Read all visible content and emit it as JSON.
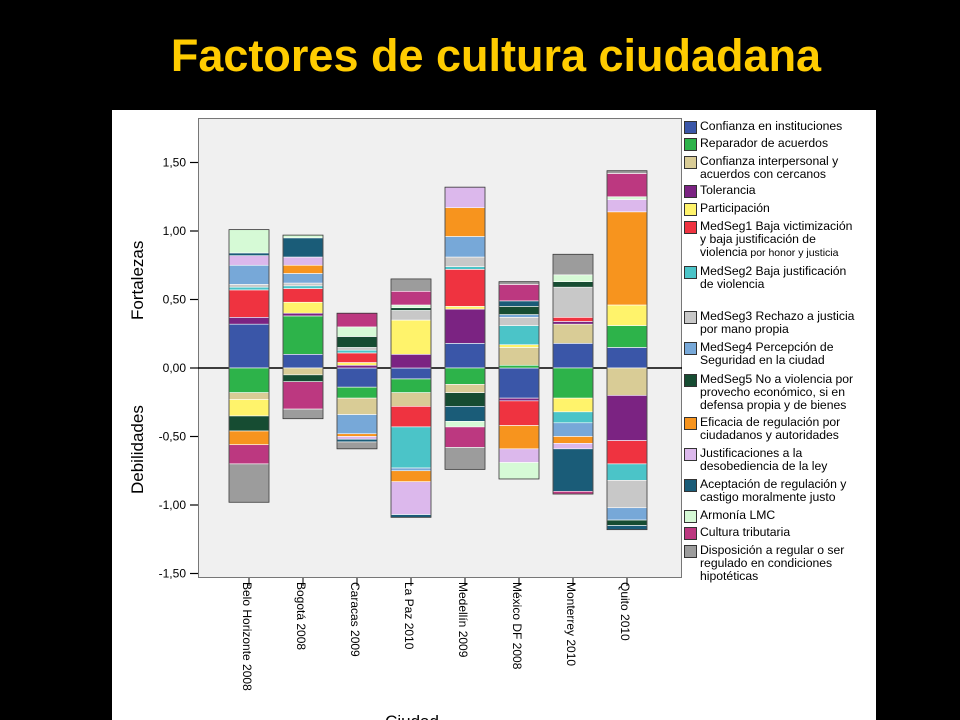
{
  "slide": {
    "title": "Factores de cultura ciudadana"
  },
  "colors": {
    "background": "#000000",
    "title": "#ffcc00",
    "panel": "#ffffff",
    "plot_bg": "#f0f0f0"
  },
  "chart_data": {
    "type": "bar",
    "stacked": true,
    "diverging": true,
    "ylabel_positive": "Fortalezas",
    "ylabel_negative": "Debilidades",
    "ylim": [
      -1.5,
      1.8
    ],
    "yticks": [
      1.5,
      1.0,
      0.5,
      0.0,
      -0.5,
      -1.0,
      -1.5
    ],
    "ytick_labels": [
      "1,50",
      "1,00",
      "0,50",
      "0,00",
      "-0,50",
      "-1,00",
      "-1,50"
    ],
    "x_title_partial": "Ciudad",
    "legend_position": "right",
    "categories": [
      "Belo Horizonte 2008",
      "Bogotá 2008",
      "Caracas 2009",
      "La Paz 2010",
      "Medellín 2009",
      "México DF 2008",
      "Monterrey 2010",
      "Quito 2010"
    ],
    "series": [
      {
        "name": "Confianza en instituciones",
        "color": "#3a56a8",
        "values": [
          0.32,
          0.1,
          -0.14,
          -0.08,
          0.18,
          -0.22,
          0.18,
          0.15
        ]
      },
      {
        "name": "Reparador de acuerdos",
        "color": "#2db34a",
        "values": [
          -0.18,
          0.28,
          -0.08,
          -0.1,
          -0.12,
          0.02,
          -0.22,
          0.16
        ]
      },
      {
        "name": "Confianza interpersonal y acuerdos con cercanos",
        "color": "#d9cc96",
        "values": [
          -0.05,
          -0.05,
          -0.12,
          -0.1,
          -0.06,
          0.13,
          0.14,
          -0.2
        ]
      },
      {
        "name": "Tolerancia",
        "color": "#7b2382",
        "values": [
          0.05,
          0.02,
          0.02,
          0.1,
          0.25,
          -0.02,
          0.02,
          -0.33
        ]
      },
      {
        "name": "Participación",
        "color": "#fff36b",
        "values": [
          -0.12,
          0.08,
          0.02,
          0.25,
          0.02,
          0.02,
          -0.1,
          0.15
        ]
      },
      {
        "name": "MedSeg1 Baja victimización y baja justificación de violencia por honor y justicia",
        "color": "#ef3340",
        "values": [
          0.2,
          0.1,
          0.07,
          -0.15,
          0.27,
          -0.18,
          0.03,
          -0.17
        ]
      },
      {
        "name": "MedSeg2 Baja justificación de violencia",
        "color": "#4bc4c8",
        "values": [
          0.02,
          0.02,
          0.02,
          -0.3,
          0.02,
          0.14,
          -0.08,
          -0.12
        ]
      },
      {
        "name": "MedSeg3 Rechazo a justicia por mano propia",
        "color": "#c8c8c8",
        "values": [
          0.02,
          0.02,
          0.02,
          0.07,
          0.07,
          0.06,
          0.22,
          -0.2
        ]
      },
      {
        "name": "MedSeg4 Percepción de Seguridad en la ciudad",
        "color": "#77a8d8",
        "values": [
          0.14,
          0.07,
          -0.14,
          -0.02,
          0.15,
          0.02,
          -0.1,
          -0.09
        ]
      },
      {
        "name": "MedSeg5 No a violencia por provecho económico, si en defensa propia y de bienes",
        "color": "#164c32",
        "values": [
          -0.11,
          -0.05,
          0.08,
          0.02,
          -0.1,
          0.06,
          0.04,
          -0.04
        ]
      },
      {
        "name": "Eficacia de regulación por ciudadanos y autoridades",
        "color": "#f7941e",
        "values": [
          -0.1,
          0.06,
          -0.02,
          -0.08,
          0.21,
          -0.17,
          -0.05,
          0.68
        ]
      },
      {
        "name": "Justificaciones a la desobediencia de la ley",
        "color": "#dcb8ec",
        "values": [
          0.07,
          0.06,
          -0.02,
          -0.24,
          0.15,
          -0.1,
          -0.04,
          0.09
        ]
      },
      {
        "name": "Aceptación de regulación y castigo moralmente justo",
        "color": "#1a5c78",
        "values": [
          0.02,
          0.14,
          -0.02,
          -0.02,
          -0.11,
          0.04,
          -0.31,
          -0.03
        ]
      },
      {
        "name": "Armonía LMC",
        "color": "#d6fad6",
        "values": [
          0.17,
          0.02,
          0.07,
          0.02,
          -0.04,
          -0.12,
          0.05,
          0.02
        ]
      },
      {
        "name": "Cultura tributaria",
        "color": "#bc3880",
        "values": [
          -0.14,
          -0.2,
          0.1,
          0.1,
          -0.15,
          0.12,
          -0.02,
          0.17
        ]
      },
      {
        "name": "Disposición a regular o ser regulado en condiciones hipotéticas",
        "color": "#9c9c9c",
        "values": [
          -0.28,
          -0.07,
          -0.05,
          0.09,
          -0.16,
          0.02,
          0.15,
          0.02
        ]
      }
    ]
  },
  "legend": {
    "items": [
      {
        "lines": [
          "Confianza en instituciones"
        ],
        "color": "#3a56a8"
      },
      {
        "lines": [
          "Reparador de acuerdos"
        ],
        "color": "#2db34a"
      },
      {
        "lines": [
          "Confianza interpersonal y",
          "acuerdos con cercanos"
        ],
        "color": "#d9cc96"
      },
      {
        "lines": [
          "Tolerancia"
        ],
        "color": "#7b2382"
      },
      {
        "lines": [
          "Participación"
        ],
        "color": "#fff36b"
      },
      {
        "lines": [
          "MedSeg1 Baja victimización",
          "y baja justificación de",
          "violencia"
        ],
        "small": "por honor y justicia",
        "color": "#ef3340"
      },
      {
        "lines": [
          "MedSeg2 Baja justificación",
          "de violencia"
        ],
        "color": "#4bc4c8"
      },
      {
        "lines": [
          "MedSeg3 Rechazo a justicia",
          "por mano propia"
        ],
        "color": "#c8c8c8"
      },
      {
        "lines": [
          "MedSeg4 Percepción de",
          "Seguridad en la ciudad"
        ],
        "color": "#77a8d8"
      },
      {
        "lines": [
          "MedSeg5 No a violencia por",
          "provecho económico, si en",
          "defensa propia y de bienes"
        ],
        "color": "#164c32"
      },
      {
        "lines": [
          "Eficacia de regulación por",
          "ciudadanos y autoridades"
        ],
        "color": "#f7941e"
      },
      {
        "lines": [
          "Justificaciones a la",
          "desobediencia de la ley"
        ],
        "color": "#dcb8ec"
      },
      {
        "lines": [
          "Aceptación de regulación y",
          "castigo moralmente justo"
        ],
        "color": "#1a5c78"
      },
      {
        "lines": [
          "Armonía LMC"
        ],
        "color": "#d6fad6"
      },
      {
        "lines": [
          "Cultura tributaria"
        ],
        "color": "#bc3880"
      },
      {
        "lines": [
          "Disposición a regular o ser",
          "regulado en condiciones",
          "hipotéticas"
        ],
        "color": "#9c9c9c"
      }
    ]
  }
}
